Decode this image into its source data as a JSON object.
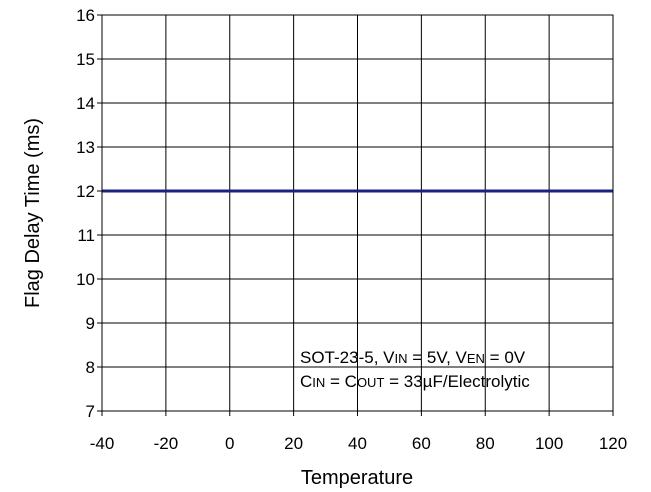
{
  "chart_data": {
    "type": "line",
    "title": "",
    "xlabel": "Temperature",
    "ylabel": "Flag Delay Time (ms)",
    "xlim": [
      -40,
      120
    ],
    "ylim": [
      7,
      16
    ],
    "x_ticks": [
      -40,
      -20,
      0,
      20,
      40,
      60,
      80,
      100,
      120
    ],
    "y_ticks": [
      7,
      8,
      9,
      10,
      11,
      12,
      13,
      14,
      15,
      16
    ],
    "x_tick_labels": [
      "-40",
      "-20",
      "0",
      "20",
      "40",
      "60",
      "80",
      "100",
      "120"
    ],
    "y_tick_labels": [
      "7",
      "8",
      "9",
      "10",
      "11",
      "12",
      "13",
      "14",
      "15",
      "16"
    ],
    "grid": true,
    "series": [
      {
        "color": "#1a237e",
        "x": [
          -40,
          120
        ],
        "y": [
          12,
          12
        ]
      }
    ],
    "annotation": {
      "line1": {
        "a": "SOT-23-5, V",
        "a_sub": "IN",
        "b": " = 5V, V",
        "b_sub": "EN",
        "c": " = 0V"
      },
      "line2": {
        "a": "C",
        "a_sub": "IN",
        "b": " = C",
        "b_sub": "OUT",
        "c": " = 33µF/Electrolytic"
      }
    }
  }
}
